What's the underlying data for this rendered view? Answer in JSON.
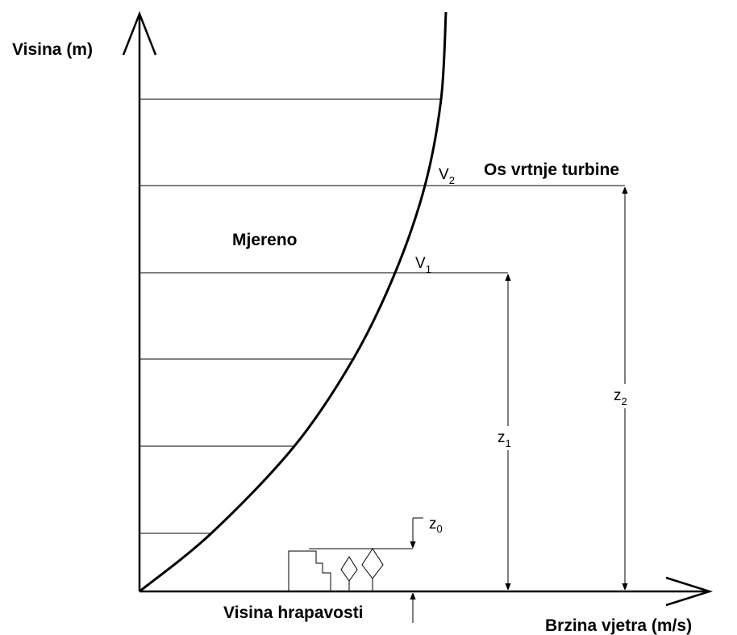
{
  "axes": {
    "y_label": "Visina (m)",
    "x_label": "Brzina vjetra (m/s)"
  },
  "labels": {
    "hub": "Os vrtnje turbine",
    "measured": "Mjereno",
    "roughness": "Visina hrapavosti"
  },
  "points": [
    {
      "label": "V",
      "sub": "1"
    },
    {
      "label": "V",
      "sub": "2"
    }
  ],
  "dimensions": [
    {
      "label": "z",
      "sub": "0"
    },
    {
      "label": "z",
      "sub": "1"
    },
    {
      "label": "z",
      "sub": "2"
    }
  ]
}
